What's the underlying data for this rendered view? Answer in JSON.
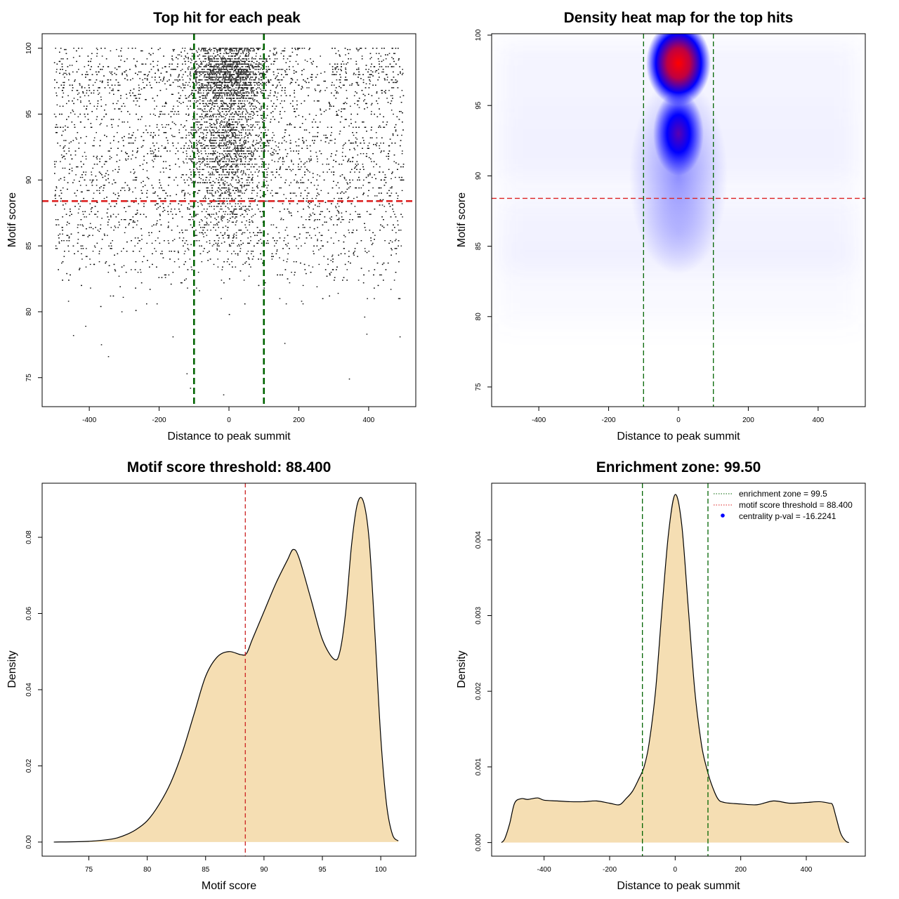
{
  "chart_data": [
    {
      "type": "scatter",
      "title": "Top hit for each peak",
      "xlabel": "Distance to peak summit",
      "ylabel": "Motif score",
      "xlim": [
        -535,
        535
      ],
      "ylim": [
        72.8,
        101.1
      ],
      "xticks": [
        -400,
        -200,
        0,
        200,
        400
      ],
      "xtick_labels": [
        "-400",
        "-200",
        "0",
        "200",
        "400"
      ],
      "yticks": [
        75,
        80,
        85,
        90,
        95,
        100
      ],
      "ytick_labels": [
        "75",
        "80",
        "85",
        "90",
        "95",
        "100"
      ],
      "vlines": [
        -100,
        100
      ],
      "hline": 88.4,
      "line_colors": {
        "vertical": "#006400",
        "horizontal": "#dd2222"
      },
      "point_color": "#000000",
      "x_range_of_points": [
        -500,
        500
      ],
      "outlier_points": [
        {
          "x": -445,
          "y": 78.2
        },
        {
          "x": -410,
          "y": 78.9
        },
        {
          "x": -345,
          "y": 76.6
        },
        {
          "x": -365,
          "y": 77.5
        },
        {
          "x": -120,
          "y": 75.3
        },
        {
          "x": -110,
          "y": 74.2
        },
        {
          "x": -15,
          "y": 73.7
        },
        {
          "x": 345,
          "y": 74.9
        },
        {
          "x": 490,
          "y": 78.1
        },
        {
          "x": 395,
          "y": 78.3
        },
        {
          "x": 160,
          "y": 77.6
        },
        {
          "x": -160,
          "y": 78.1
        }
      ]
    },
    {
      "type": "heatmap",
      "title": "Density heat map for the top hits",
      "xlabel": "Distance to peak summit",
      "ylabel": "Motif score",
      "xlim": [
        -535,
        535
      ],
      "ylim": [
        73.6,
        100.1
      ],
      "xticks": [
        -400,
        -200,
        0,
        200,
        400
      ],
      "xtick_labels": [
        "-400",
        "-200",
        "0",
        "200",
        "400"
      ],
      "yticks": [
        75,
        80,
        85,
        90,
        95,
        100
      ],
      "ytick_labels": [
        "75",
        "80",
        "85",
        "90",
        "95",
        "100"
      ],
      "vlines": [
        -100,
        100
      ],
      "hline": 88.4,
      "hotspots": [
        {
          "x": 0,
          "y": 98.0,
          "intensity": "high"
        },
        {
          "x": 0,
          "y": 93.0,
          "intensity": "medium"
        }
      ],
      "colors": {
        "low": "#ffffff",
        "mid": "#0000ff",
        "high": "#ff0000"
      }
    },
    {
      "type": "area",
      "title": "Motif score threshold: 88.400",
      "xlabel": "Motif score",
      "ylabel": "Density",
      "xlim": [
        71.0,
        103.0
      ],
      "ylim": [
        -0.0037,
        0.0942
      ],
      "xticks": [
        75,
        80,
        85,
        90,
        95,
        100
      ],
      "xtick_labels": [
        "75",
        "80",
        "85",
        "90",
        "95",
        "100"
      ],
      "yticks": [
        0.0,
        0.02,
        0.04,
        0.06,
        0.08
      ],
      "ytick_labels": [
        "0.00",
        "0.02",
        "0.04",
        "0.06",
        "0.08"
      ],
      "vline": 88.4,
      "x": [
        72,
        75,
        77,
        78,
        79,
        80,
        81,
        82,
        83,
        84,
        85,
        86,
        87,
        88,
        88.5,
        89,
        90,
        91,
        92,
        92.5,
        93,
        94,
        95,
        96,
        96.5,
        97,
        97.5,
        98,
        98.5,
        99,
        99.5,
        100,
        100.5,
        101,
        101.5
      ],
      "y": [
        0.0,
        0.0002,
        0.0008,
        0.0017,
        0.0032,
        0.0056,
        0.0098,
        0.0155,
        0.0235,
        0.0335,
        0.0435,
        0.0486,
        0.05,
        0.0492,
        0.0495,
        0.0532,
        0.0605,
        0.0678,
        0.074,
        0.0768,
        0.0746,
        0.064,
        0.0532,
        0.048,
        0.05,
        0.0605,
        0.078,
        0.0888,
        0.0895,
        0.0795,
        0.0548,
        0.0275,
        0.0098,
        0.002,
        0.0003
      ],
      "fill_color": "#f5deb3",
      "vline_color": "#cc2222"
    },
    {
      "type": "area",
      "title": "Enrichment zone: 99.50",
      "xlabel": "Distance to peak summit",
      "ylabel": "Density",
      "xlim": [
        -560,
        580
      ],
      "ylim": [
        -0.00018,
        0.00475
      ],
      "xticks": [
        -400,
        -200,
        0,
        200,
        400
      ],
      "xtick_labels": [
        "-400",
        "-200",
        "0",
        "200",
        "400"
      ],
      "yticks": [
        0.0,
        0.001,
        0.002,
        0.003,
        0.004
      ],
      "ytick_labels": [
        "0.000",
        "0.001",
        "0.002",
        "0.003",
        "0.004"
      ],
      "vlines": [
        -100,
        100
      ],
      "x": [
        -530,
        -520,
        -505,
        -490,
        -470,
        -450,
        -420,
        -400,
        -360,
        -320,
        -280,
        -240,
        -200,
        -170,
        -150,
        -130,
        -110,
        -95,
        -80,
        -60,
        -40,
        -20,
        0,
        20,
        40,
        60,
        80,
        95,
        110,
        130,
        150,
        200,
        250,
        300,
        350,
        400,
        440,
        470,
        480,
        490,
        505,
        520,
        530
      ],
      "y": [
        0.0,
        5e-05,
        0.00025,
        0.00052,
        0.00058,
        0.00057,
        0.00059,
        0.00056,
        0.00055,
        0.00054,
        0.00054,
        0.00055,
        0.00052,
        0.0005,
        0.00058,
        0.00068,
        0.00085,
        0.001,
        0.0013,
        0.002,
        0.0031,
        0.0041,
        0.0046,
        0.0042,
        0.0031,
        0.002,
        0.0013,
        0.001,
        0.00078,
        0.00058,
        0.00053,
        0.00051,
        0.0005,
        0.00055,
        0.00052,
        0.00053,
        0.00054,
        0.00052,
        0.0005,
        0.00035,
        0.00012,
        2e-05,
        0.0
      ],
      "fill_color": "#f5deb3",
      "legend": {
        "position": "top-right",
        "entries": [
          {
            "label": "enrichment zone = 99.5",
            "color": "#006400",
            "style": "dotted-line"
          },
          {
            "label": "motif score threshold = 88.400",
            "color": "#dd2222",
            "style": "dotted-line"
          },
          {
            "label": "centrality p-val = -16.2241",
            "color": "#0000ff",
            "style": "point"
          }
        ]
      }
    }
  ]
}
